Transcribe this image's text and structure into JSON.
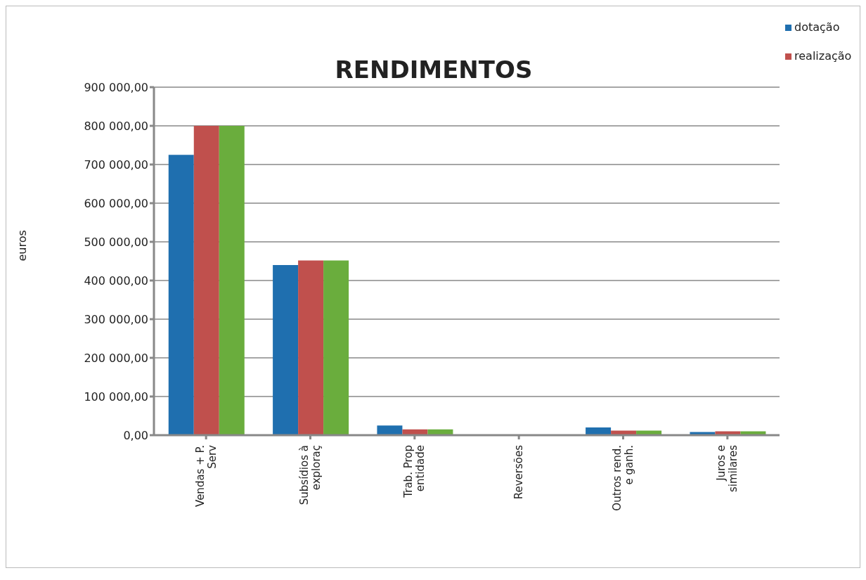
{
  "chart_data": {
    "type": "bar",
    "title": "RENDIMENTOS",
    "ylabel": "euros",
    "categories": [
      "Vendas + P. Serv",
      "Subsídios à exploraç",
      "Trab. Prop entidade",
      "Reversões",
      "Outros rend. e ganh.",
      "Juros e similares"
    ],
    "series": [
      {
        "name": "dotação",
        "color": "#1f6faf",
        "values": [
          725000,
          440000,
          25000,
          0,
          20000,
          8000
        ]
      },
      {
        "name": "realização",
        "color": "#c0504d",
        "values": [
          800000,
          452000,
          15000,
          0,
          12000,
          10000
        ]
      },
      {
        "color": "#6aad3d",
        "values": [
          800000,
          452000,
          15000,
          0,
          12000,
          10000
        ]
      }
    ],
    "ylim": [
      0,
      900000
    ],
    "yticks": [
      {
        "value": 0,
        "label": "0,00"
      },
      {
        "value": 100000,
        "label": "100 000,00"
      },
      {
        "value": 200000,
        "label": "200 000,00"
      },
      {
        "value": 300000,
        "label": "300 000,00"
      },
      {
        "value": 400000,
        "label": "400 000,00"
      },
      {
        "value": 500000,
        "label": "500 000,00"
      },
      {
        "value": 600000,
        "label": "600 000,00"
      },
      {
        "value": 700000,
        "label": "700 000,00"
      },
      {
        "value": 800000,
        "label": "800 000,00"
      },
      {
        "value": 900000,
        "label": "900 000,00"
      }
    ],
    "grid": "y",
    "legend": "top right"
  }
}
